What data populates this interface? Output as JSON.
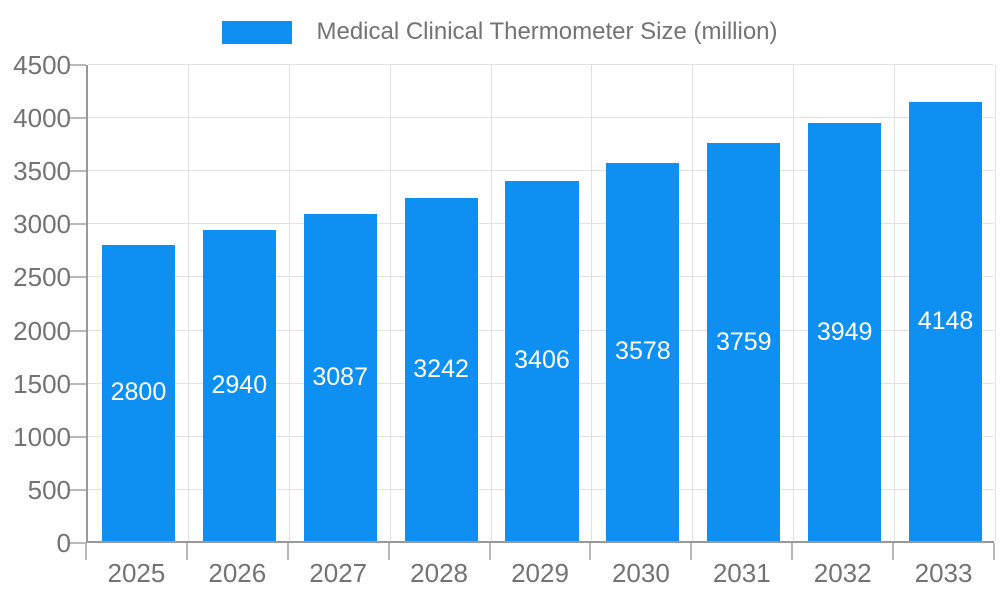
{
  "legend": {
    "label": "Medical Clinical Thermometer Size (million)"
  },
  "chart_data": {
    "type": "bar",
    "title": "Medical Clinical Thermometer Size (million)",
    "series_name": "Medical Clinical Thermometer Size (million)",
    "categories": [
      "2025",
      "2026",
      "2027",
      "2028",
      "2029",
      "2030",
      "2031",
      "2032",
      "2033"
    ],
    "values": [
      2800,
      2940,
      3087,
      3242,
      3406,
      3578,
      3759,
      3949,
      4148
    ],
    "xlabel": "",
    "ylabel": "",
    "ylim": [
      0,
      4500
    ],
    "yticks": [
      0,
      500,
      1000,
      1500,
      2000,
      2500,
      3000,
      3500,
      4000,
      4500
    ],
    "grid": true,
    "legend_position": "top-center",
    "bar_value_labels": "inside-center"
  },
  "colors": {
    "bar": "#0E90F2",
    "axis": "#999999",
    "grid": "#e2e2e2",
    "tick": "#b9b9b9",
    "text": "#737373",
    "barlabel": "#ffffff",
    "bg": "#ffffff"
  }
}
